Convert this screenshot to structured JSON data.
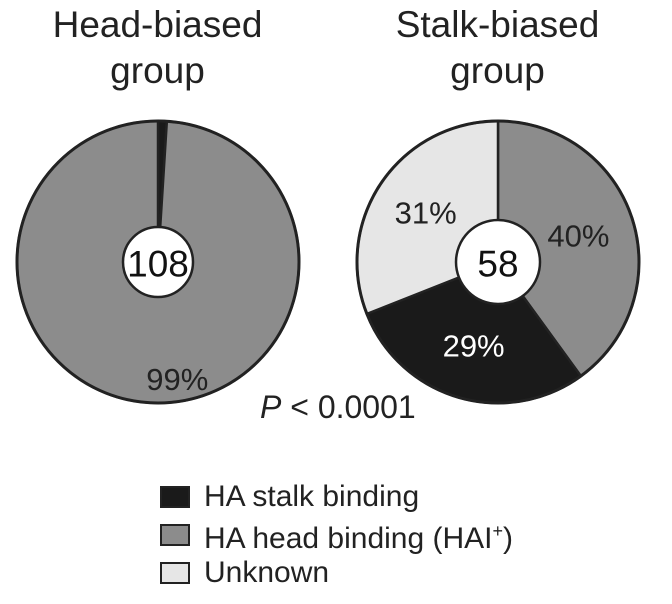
{
  "chart_data": [
    {
      "type": "pie",
      "title": "Head-biased group",
      "total_label": "108",
      "slices": [
        {
          "category": "HA stalk binding",
          "value": 1,
          "label": ""
        },
        {
          "category": "HA head binding (HAI+)",
          "value": 99,
          "label": "99%"
        }
      ]
    },
    {
      "type": "pie",
      "title": "Stalk-biased group",
      "total_label": "58",
      "slices": [
        {
          "category": "HA head binding (HAI+)",
          "value": 40,
          "label": "40%"
        },
        {
          "category": "HA stalk binding",
          "value": 29,
          "label": "29%"
        },
        {
          "category": "Unknown",
          "value": 31,
          "label": "31%"
        }
      ]
    }
  ],
  "titles": {
    "head_line1": "Head-biased",
    "head_line2": "group",
    "stalk_line1": "Stalk-biased",
    "stalk_line2": "group"
  },
  "stats": {
    "p_letter": "P",
    "p_rest": " < 0.0001"
  },
  "legend": [
    {
      "label": "HA stalk binding",
      "sup": "",
      "suffix": "",
      "color": "#1a1a1a"
    },
    {
      "label": "HA head binding (HAI",
      "sup": "+",
      "suffix": ")",
      "color": "#8c8c8c"
    },
    {
      "label": "Unknown",
      "sup": "",
      "suffix": "",
      "color": "#e6e6e6"
    }
  ],
  "colors": {
    "HA stalk binding": "#1a1a1a",
    "HA head binding (HAI+)": "#8c8c8c",
    "Unknown": "#e6e6e6",
    "outline": "#222222"
  }
}
